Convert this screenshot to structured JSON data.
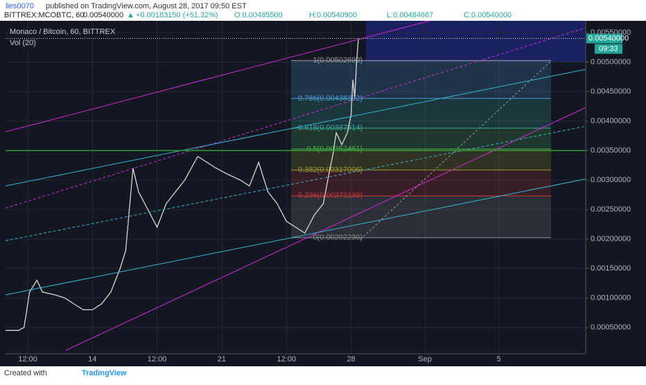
{
  "header": {
    "author": "lies0070",
    "published": "published on TradingView.com, August 28, 2017 09:50 EST",
    "symbol": "BITTREX:MCOBTC, 60",
    "change": "+0.00183150 (+51.32%)",
    "open": "O:0.00485500",
    "high": "H:0.00540900",
    "low": "L:0.00484667",
    "close": "C:0.00540000"
  },
  "footer": {
    "created": "Created with",
    "brand": "TradingView"
  },
  "chart_data": {
    "type": "line",
    "title": "Monaco / Bitcoin, 60, BITTREX",
    "indicator": "Vol (20)",
    "color": "#d8d8d8",
    "x": [
      9.3,
      10,
      10.3,
      10.6,
      11,
      11.3,
      12,
      12.5,
      13,
      13.5,
      14,
      14.5,
      15,
      15.5,
      15.8,
      16,
      16.2,
      16.5,
      17,
      17.5,
      18,
      18.5,
      19,
      19.7,
      20.2,
      20.7,
      21.3,
      22,
      22.5,
      23,
      23.5,
      24,
      24.5,
      25,
      25.5,
      26,
      26.5,
      26.8,
      27,
      27.2,
      27.5,
      27.8,
      28,
      28.1,
      28.2,
      28.3,
      28.4
    ],
    "values": [
      0.00045,
      0.00045,
      0.0005,
      0.0011,
      0.0013,
      0.0011,
      0.00105,
      0.001,
      0.0009,
      0.0008,
      0.0008,
      0.0009,
      0.0011,
      0.0015,
      0.0018,
      0.0025,
      0.0032,
      0.0028,
      0.0025,
      0.0022,
      0.0026,
      0.0028,
      0.003,
      0.0034,
      0.0033,
      0.0032,
      0.0031,
      0.003,
      0.0029,
      0.0033,
      0.0028,
      0.0026,
      0.0023,
      0.0022,
      0.0021,
      0.0024,
      0.0026,
      0.0031,
      0.0034,
      0.0038,
      0.0036,
      0.0038,
      0.0041,
      0.0047,
      0.0044,
      0.005,
      0.0054
    ],
    "xlim": [
      9.3,
      40.7
    ],
    "ylim": [
      0.0001,
      0.0057
    ],
    "xticks": [
      {
        "value": 10.5,
        "label": "12:00"
      },
      14,
      {
        "value": 17.5,
        "label": "12:00"
      },
      21,
      {
        "value": 24.5,
        "label": "12:00"
      },
      28,
      {
        "value": 32,
        "label": "Sep"
      },
      {
        "value": 36,
        "label": "5"
      }
    ],
    "yticks": [
      {
        "value": 0.0005,
        "label": "0.00050000"
      },
      {
        "value": 0.001,
        "label": "0.00100000"
      },
      {
        "value": 0.0015,
        "label": "0.00150000"
      },
      {
        "value": 0.002,
        "label": "0.00200000"
      },
      {
        "value": 0.0025,
        "label": "0.00250000"
      },
      {
        "value": 0.003,
        "label": "0.00300000"
      },
      {
        "value": 0.0035,
        "label": "0.00350000"
      },
      {
        "value": 0.004,
        "label": "0.00400000"
      },
      {
        "value": 0.0045,
        "label": "0.00450000"
      },
      {
        "value": 0.005,
        "label": "0.00500000"
      },
      {
        "value": 0.0055,
        "label": "0.00550000"
      }
    ],
    "grid": true,
    "last_price": {
      "value": 0.0054,
      "label": "0.00540000"
    },
    "countdown": "09:33",
    "fib_levels": [
      {
        "value": 0.0050269,
        "label": "1(0.00502690)",
        "color": "#9e9e9e"
      },
      {
        "value": 0.00438392,
        "label": "0.786(0.00438392)",
        "color": "#4f9ed8"
      },
      {
        "value": 0.00387914,
        "label": "0.618(0.00387914)",
        "color": "#3aa89c"
      },
      {
        "value": 0.00352461,
        "label": "0.5(0.00352461)",
        "color": "#4caf50"
      },
      {
        "value": 0.00317006,
        "label": "0.382(0.00317006)",
        "color": "#9c9d2e"
      },
      {
        "value": 0.00273139,
        "label": "0.236(0.00273139)",
        "color": "#c83a3a"
      },
      {
        "value": 0.0020223,
        "label": "0(0.00202230)",
        "color": "#8a8a8a"
      }
    ]
  }
}
